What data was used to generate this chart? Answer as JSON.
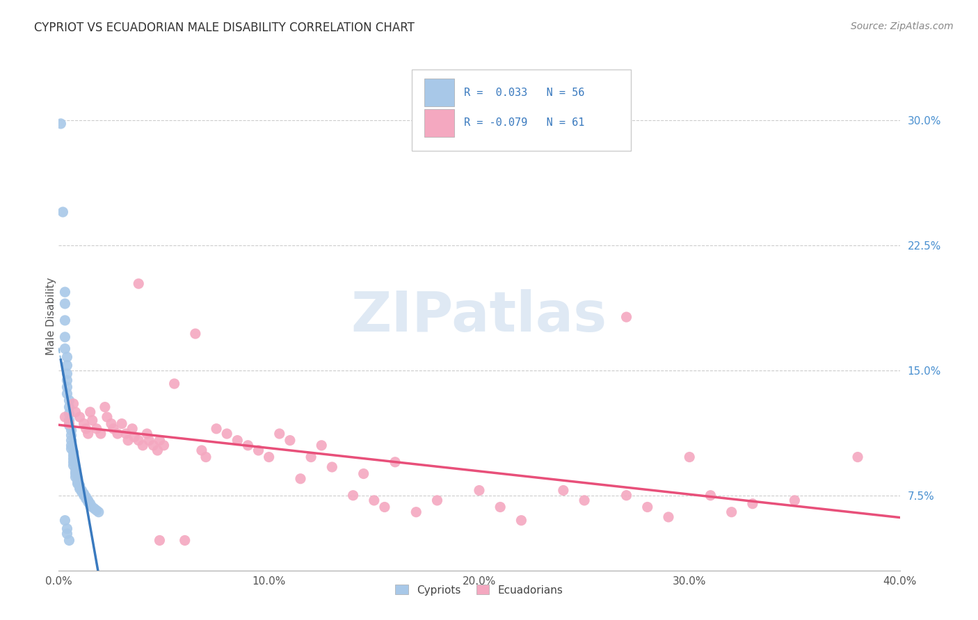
{
  "title": "CYPRIOT VS ECUADORIAN MALE DISABILITY CORRELATION CHART",
  "source": "Source: ZipAtlas.com",
  "ylabel": "Male Disability",
  "ytick_labels": [
    "7.5%",
    "15.0%",
    "22.5%",
    "30.0%"
  ],
  "ytick_values": [
    0.075,
    0.15,
    0.225,
    0.3
  ],
  "xtick_labels": [
    "0.0%",
    "10.0%",
    "20.0%",
    "30.0%",
    "40.0%"
  ],
  "xtick_values": [
    0.0,
    0.1,
    0.2,
    0.3,
    0.4
  ],
  "xlim": [
    0.0,
    0.4
  ],
  "ylim": [
    0.03,
    0.335
  ],
  "watermark": "ZIPatlas",
  "cypriot_color": "#a8c8e8",
  "ecuadorian_color": "#f4a8c0",
  "cypriot_line_color": "#3a7abf",
  "ecuadorian_line_color": "#e8507a",
  "cypriot_line_dash_color": "#90bce0",
  "cypriot_points": [
    [
      0.001,
      0.298
    ],
    [
      0.002,
      0.245
    ],
    [
      0.003,
      0.197
    ],
    [
      0.003,
      0.19
    ],
    [
      0.003,
      0.18
    ],
    [
      0.003,
      0.17
    ],
    [
      0.003,
      0.163
    ],
    [
      0.004,
      0.158
    ],
    [
      0.004,
      0.153
    ],
    [
      0.004,
      0.148
    ],
    [
      0.004,
      0.144
    ],
    [
      0.004,
      0.14
    ],
    [
      0.004,
      0.136
    ],
    [
      0.005,
      0.132
    ],
    [
      0.005,
      0.128
    ],
    [
      0.005,
      0.124
    ],
    [
      0.005,
      0.12
    ],
    [
      0.005,
      0.117
    ],
    [
      0.006,
      0.114
    ],
    [
      0.006,
      0.111
    ],
    [
      0.006,
      0.108
    ],
    [
      0.006,
      0.105
    ],
    [
      0.006,
      0.103
    ],
    [
      0.007,
      0.101
    ],
    [
      0.007,
      0.099
    ],
    [
      0.007,
      0.097
    ],
    [
      0.007,
      0.095
    ],
    [
      0.007,
      0.093
    ],
    [
      0.008,
      0.091
    ],
    [
      0.008,
      0.089
    ],
    [
      0.008,
      0.088
    ],
    [
      0.008,
      0.086
    ],
    [
      0.009,
      0.085
    ],
    [
      0.009,
      0.083
    ],
    [
      0.009,
      0.082
    ],
    [
      0.01,
      0.081
    ],
    [
      0.01,
      0.08
    ],
    [
      0.01,
      0.079
    ],
    [
      0.011,
      0.078
    ],
    [
      0.011,
      0.077
    ],
    [
      0.012,
      0.076
    ],
    [
      0.012,
      0.075
    ],
    [
      0.013,
      0.074
    ],
    [
      0.013,
      0.073
    ],
    [
      0.014,
      0.072
    ],
    [
      0.014,
      0.071
    ],
    [
      0.015,
      0.07
    ],
    [
      0.015,
      0.069
    ],
    [
      0.016,
      0.068
    ],
    [
      0.017,
      0.067
    ],
    [
      0.018,
      0.066
    ],
    [
      0.019,
      0.065
    ],
    [
      0.003,
      0.06
    ],
    [
      0.004,
      0.055
    ],
    [
      0.004,
      0.052
    ],
    [
      0.005,
      0.048
    ]
  ],
  "ecuadorian_points": [
    [
      0.003,
      0.122
    ],
    [
      0.005,
      0.118
    ],
    [
      0.007,
      0.13
    ],
    [
      0.008,
      0.125
    ],
    [
      0.01,
      0.122
    ],
    [
      0.012,
      0.118
    ],
    [
      0.013,
      0.115
    ],
    [
      0.014,
      0.112
    ],
    [
      0.015,
      0.125
    ],
    [
      0.016,
      0.12
    ],
    [
      0.018,
      0.115
    ],
    [
      0.02,
      0.112
    ],
    [
      0.022,
      0.128
    ],
    [
      0.023,
      0.122
    ],
    [
      0.025,
      0.118
    ],
    [
      0.026,
      0.115
    ],
    [
      0.028,
      0.112
    ],
    [
      0.03,
      0.118
    ],
    [
      0.032,
      0.112
    ],
    [
      0.033,
      0.108
    ],
    [
      0.035,
      0.115
    ],
    [
      0.036,
      0.11
    ],
    [
      0.038,
      0.108
    ],
    [
      0.04,
      0.105
    ],
    [
      0.042,
      0.112
    ],
    [
      0.043,
      0.108
    ],
    [
      0.045,
      0.105
    ],
    [
      0.047,
      0.102
    ],
    [
      0.048,
      0.108
    ],
    [
      0.05,
      0.105
    ],
    [
      0.038,
      0.202
    ],
    [
      0.055,
      0.142
    ],
    [
      0.065,
      0.172
    ],
    [
      0.068,
      0.102
    ],
    [
      0.07,
      0.098
    ],
    [
      0.075,
      0.115
    ],
    [
      0.08,
      0.112
    ],
    [
      0.085,
      0.108
    ],
    [
      0.09,
      0.105
    ],
    [
      0.095,
      0.102
    ],
    [
      0.1,
      0.098
    ],
    [
      0.105,
      0.112
    ],
    [
      0.11,
      0.108
    ],
    [
      0.115,
      0.085
    ],
    [
      0.12,
      0.098
    ],
    [
      0.125,
      0.105
    ],
    [
      0.13,
      0.092
    ],
    [
      0.14,
      0.075
    ],
    [
      0.145,
      0.088
    ],
    [
      0.15,
      0.072
    ],
    [
      0.155,
      0.068
    ],
    [
      0.16,
      0.095
    ],
    [
      0.17,
      0.065
    ],
    [
      0.18,
      0.072
    ],
    [
      0.2,
      0.078
    ],
    [
      0.21,
      0.068
    ],
    [
      0.22,
      0.06
    ],
    [
      0.24,
      0.078
    ],
    [
      0.25,
      0.072
    ],
    [
      0.27,
      0.075
    ],
    [
      0.28,
      0.068
    ],
    [
      0.29,
      0.062
    ],
    [
      0.3,
      0.098
    ],
    [
      0.31,
      0.075
    ],
    [
      0.32,
      0.065
    ],
    [
      0.33,
      0.07
    ],
    [
      0.35,
      0.072
    ],
    [
      0.27,
      0.182
    ],
    [
      0.38,
      0.098
    ],
    [
      0.048,
      0.048
    ],
    [
      0.06,
      0.048
    ]
  ]
}
